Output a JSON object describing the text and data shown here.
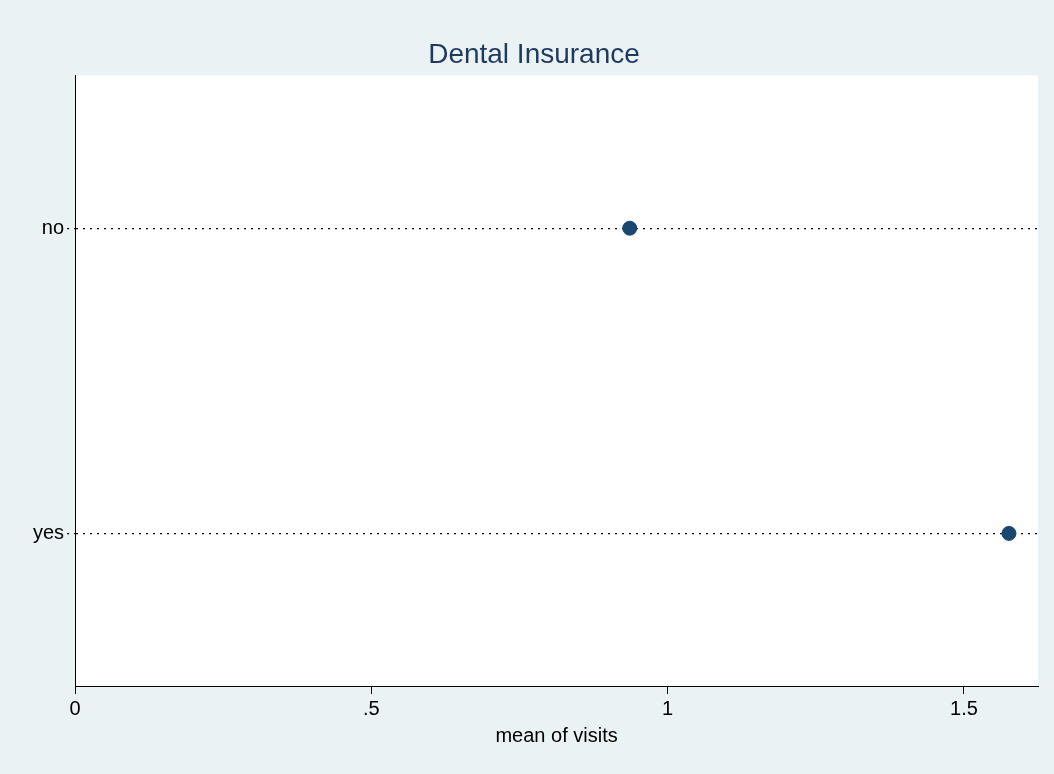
{
  "chart_data": {
    "type": "scatter",
    "orientation": "horizontal",
    "title": "Dental Insurance",
    "xlabel": "mean of visits",
    "categories": [
      "no",
      "yes"
    ],
    "series": [
      {
        "color": "#1a476f",
        "values": [
          0.936,
          1.576
        ]
      }
    ],
    "xlim": [
      0,
      1.625
    ],
    "xticks": [
      0,
      {
        "value": 0.5,
        "label": ".5"
      },
      1,
      1.5
    ],
    "grid": "y",
    "line_style": "dotted",
    "marker": "circle",
    "legend": false
  }
}
